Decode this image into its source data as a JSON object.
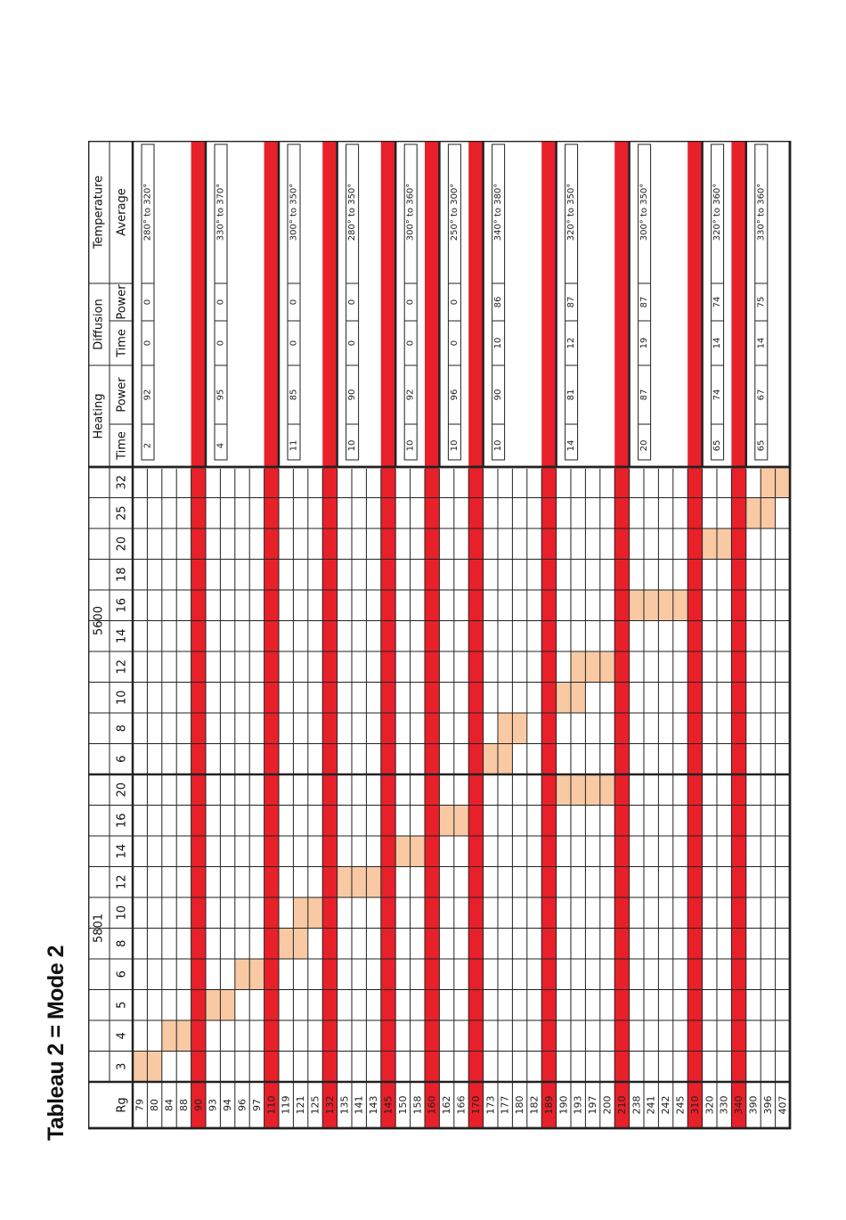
{
  "title": "Tableau 2 = Mode 2",
  "colors": {
    "separator_red": "#e8202a",
    "highlight": "#f8c9a3",
    "grid": "#222222"
  },
  "headers": {
    "rg": "Rg",
    "group_5801": "5801",
    "group_5600": "5600",
    "heating": "Heating",
    "diffusion": "Diffusion",
    "temperature": "Temperature",
    "time": "Time",
    "power": "Power",
    "average": "Average"
  },
  "cols_5801": [
    "3",
    "4",
    "5",
    "6",
    "8",
    "10",
    "12",
    "14",
    "16",
    "20"
  ],
  "cols_5600": [
    "6",
    "8",
    "10",
    "12",
    "14",
    "16",
    "18",
    "20",
    "25",
    "32"
  ],
  "groups": [
    {
      "rows": [
        "79",
        "80",
        "84",
        "88"
      ],
      "separator": "90",
      "heat_time": "2",
      "heat_power": "92",
      "diff_time": "0",
      "diff_power": "0",
      "temp": "280° to 320°",
      "highlights": [
        [
          "3",
          "0",
          "1"
        ],
        [
          "4",
          "2",
          "3"
        ]
      ]
    },
    {
      "rows": [
        "93",
        "94",
        "96",
        "97"
      ],
      "separator": "110",
      "heat_time": "4",
      "heat_power": "95",
      "diff_time": "0",
      "diff_power": "0",
      "temp": "330° to 370°",
      "highlights": [
        [
          "5",
          "0",
          "1"
        ],
        [
          "6",
          "2",
          "3"
        ]
      ]
    },
    {
      "rows": [
        "119",
        "121",
        "125"
      ],
      "separator": "132",
      "heat_time": "11",
      "heat_power": "85",
      "diff_time": "0",
      "diff_power": "0",
      "temp": "300° to 350°",
      "highlights": [
        [
          "8",
          "0",
          "1"
        ],
        [
          "10",
          "1",
          "2"
        ]
      ]
    },
    {
      "rows": [
        "135",
        "141",
        "143"
      ],
      "separator": "145",
      "heat_time": "10",
      "heat_power": "90",
      "diff_time": "0",
      "diff_power": "0",
      "temp": "280° to 350°",
      "highlights": [
        [
          "12",
          "0",
          "2"
        ]
      ]
    },
    {
      "rows": [
        "150",
        "158"
      ],
      "separator": "160",
      "heat_time": "10",
      "heat_power": "92",
      "diff_time": "0",
      "diff_power": "0",
      "temp": "300° to 360°",
      "highlights": [
        [
          "14",
          "0",
          "1"
        ]
      ]
    },
    {
      "rows": [
        "162",
        "166"
      ],
      "separator": "170",
      "heat_time": "10",
      "heat_power": "96",
      "diff_time": "0",
      "diff_power": "0",
      "temp": "250° to 300°",
      "highlights": [
        [
          "16",
          "0",
          "1"
        ]
      ]
    },
    {
      "rows": [
        "173",
        "177",
        "180",
        "182"
      ],
      "separator": "189",
      "heat_time": "10",
      "heat_power": "90",
      "diff_time": "10",
      "diff_power": "86",
      "temp": "340° to 380°",
      "highlights": [
        [
          "b6",
          "0",
          "1"
        ],
        [
          "b8",
          "1",
          "2"
        ]
      ]
    },
    {
      "rows": [
        "190",
        "193",
        "197",
        "200"
      ],
      "separator": "210",
      "heat_time": "14",
      "heat_power": "81",
      "diff_time": "12",
      "diff_power": "87",
      "temp": "320° to 350°",
      "highlights": [
        [
          "20",
          "0",
          "3"
        ],
        [
          "b10",
          "0",
          "1"
        ],
        [
          "b12",
          "1",
          "3"
        ]
      ]
    },
    {
      "rows": [
        "238",
        "241",
        "242",
        "245"
      ],
      "separator": "310",
      "heat_time": "20",
      "heat_power": "87",
      "diff_time": "19",
      "diff_power": "87",
      "temp": "300° to 350°",
      "highlights": [
        [
          "b16",
          "0",
          "3"
        ]
      ]
    },
    {
      "rows": [
        "320",
        "330"
      ],
      "separator": "340",
      "heat_time": "65",
      "heat_power": "74",
      "diff_time": "14",
      "diff_power": "74",
      "temp": "320° to 360°",
      "highlights": [
        [
          "b20",
          "0",
          "1"
        ]
      ]
    },
    {
      "rows": [
        "390",
        "396",
        "407"
      ],
      "separator": null,
      "heat_time": "65",
      "heat_power": "67",
      "diff_time": "14",
      "diff_power": "75",
      "temp": "330° to 360°",
      "highlights": [
        [
          "b25",
          "0",
          "1"
        ],
        [
          "b32",
          "1",
          "2"
        ]
      ]
    }
  ]
}
